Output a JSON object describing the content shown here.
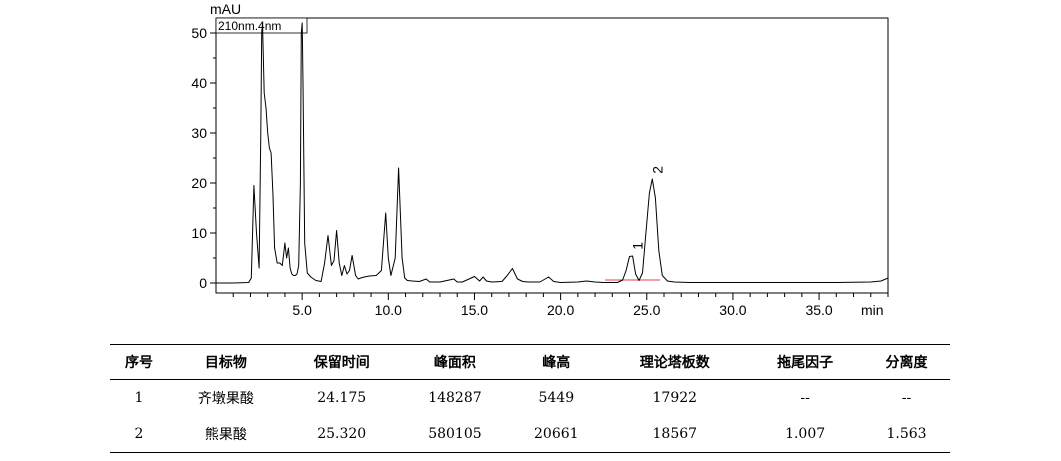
{
  "chart_data": {
    "type": "line",
    "title": "",
    "detector_label": "210nm.4nm",
    "xlabel": "min",
    "ylabel": "mAU",
    "xlim": [
      0,
      39
    ],
    "ylim": [
      -2,
      53
    ],
    "x_ticks": [
      5.0,
      10.0,
      15.0,
      20.0,
      25.0,
      30.0,
      35.0
    ],
    "x_tick_labels": [
      "5.0",
      "10.0",
      "15.0",
      "20.0",
      "25.0",
      "30.0",
      "35.0"
    ],
    "y_ticks": [
      0,
      10,
      20,
      30,
      40,
      50
    ],
    "y_tick_labels": [
      "0",
      "10",
      "20",
      "30",
      "40",
      "50"
    ],
    "grid": false,
    "series": [
      {
        "x": [
          0.0,
          1.0,
          1.9,
          2.05,
          2.2,
          2.35,
          2.5,
          2.6,
          2.65,
          2.7,
          2.8,
          2.9,
          3.0,
          3.1,
          3.2,
          3.3,
          3.4,
          3.55,
          3.7,
          3.85,
          4.0,
          4.1,
          4.2,
          4.3,
          4.4,
          4.5,
          4.6,
          4.7,
          4.8,
          4.9,
          4.95,
          5.0,
          5.05,
          5.15,
          5.3,
          5.5,
          5.8,
          6.1,
          6.3,
          6.5,
          6.7,
          6.85,
          7.0,
          7.15,
          7.3,
          7.45,
          7.6,
          7.75,
          7.9,
          8.1,
          8.25,
          8.4,
          8.6,
          8.9,
          9.3,
          9.6,
          9.85,
          10.0,
          10.15,
          10.4,
          10.6,
          10.8,
          10.95,
          11.1,
          11.4,
          11.8,
          12.2,
          12.4,
          12.6,
          13.0,
          13.8,
          14.0,
          14.3,
          15.0,
          15.3,
          15.5,
          15.7,
          16.0,
          16.6,
          16.9,
          17.2,
          17.5,
          17.8,
          18.1,
          18.8,
          19.3,
          19.6,
          20.0,
          21.0,
          21.5,
          22.0,
          22.5,
          23.3,
          23.6,
          23.8,
          24.0,
          24.175,
          24.35,
          24.55,
          24.75,
          24.95,
          25.15,
          25.32,
          25.5,
          25.7,
          25.9,
          26.2,
          26.6,
          27.5,
          30.0,
          33.0,
          36.0,
          38.0,
          38.6,
          39.0
        ],
        "y": [
          0.0,
          0.0,
          0.1,
          1.0,
          19.5,
          10.0,
          3.0,
          30.0,
          50.0,
          52.0,
          38.0,
          35.0,
          30.0,
          27.0,
          26.0,
          18.0,
          7.0,
          4.0,
          4.0,
          3.5,
          8.0,
          5.0,
          7.0,
          3.0,
          1.8,
          1.5,
          1.5,
          1.8,
          3.5,
          20.0,
          50.0,
          52.0,
          40.0,
          8.0,
          2.0,
          1.2,
          0.5,
          0.3,
          4.0,
          9.5,
          3.5,
          4.5,
          10.5,
          4.0,
          1.5,
          3.5,
          1.8,
          2.5,
          5.5,
          1.5,
          0.8,
          1.0,
          1.2,
          1.4,
          1.5,
          2.5,
          14.0,
          5.0,
          1.5,
          5.0,
          23.0,
          5.0,
          1.0,
          0.5,
          0.4,
          0.3,
          0.8,
          0.2,
          0.2,
          0.2,
          0.8,
          0.2,
          0.2,
          1.3,
          0.4,
          1.2,
          0.4,
          0.2,
          0.3,
          1.5,
          2.9,
          0.8,
          0.3,
          0.2,
          0.2,
          1.2,
          0.3,
          0.1,
          0.2,
          0.4,
          0.2,
          0.1,
          0.1,
          0.6,
          2.5,
          5.3,
          5.4,
          1.8,
          0.5,
          2.0,
          10.0,
          18.0,
          20.8,
          17.0,
          6.5,
          1.5,
          0.4,
          0.2,
          0.1,
          0.1,
          0.1,
          0.1,
          0.2,
          0.4,
          1.0
        ]
      }
    ],
    "peak_labels": [
      {
        "label": "1",
        "x": 24.175,
        "y": 5.449
      },
      {
        "label": "2",
        "x": 25.32,
        "y": 20.661
      }
    ]
  },
  "table": {
    "headers": [
      "序号",
      "目标物",
      "保留时间",
      "峰面积",
      "峰高",
      "理论塔板数",
      "拖尾因子",
      "分离度"
    ],
    "rows": [
      [
        "1",
        "齐墩果酸",
        "24.175",
        "148287",
        "5449",
        "17922",
        "--",
        "--"
      ],
      [
        "2",
        "熊果酸",
        "25.320",
        "580105",
        "20661",
        "18567",
        "1.007",
        "1.563"
      ]
    ]
  }
}
